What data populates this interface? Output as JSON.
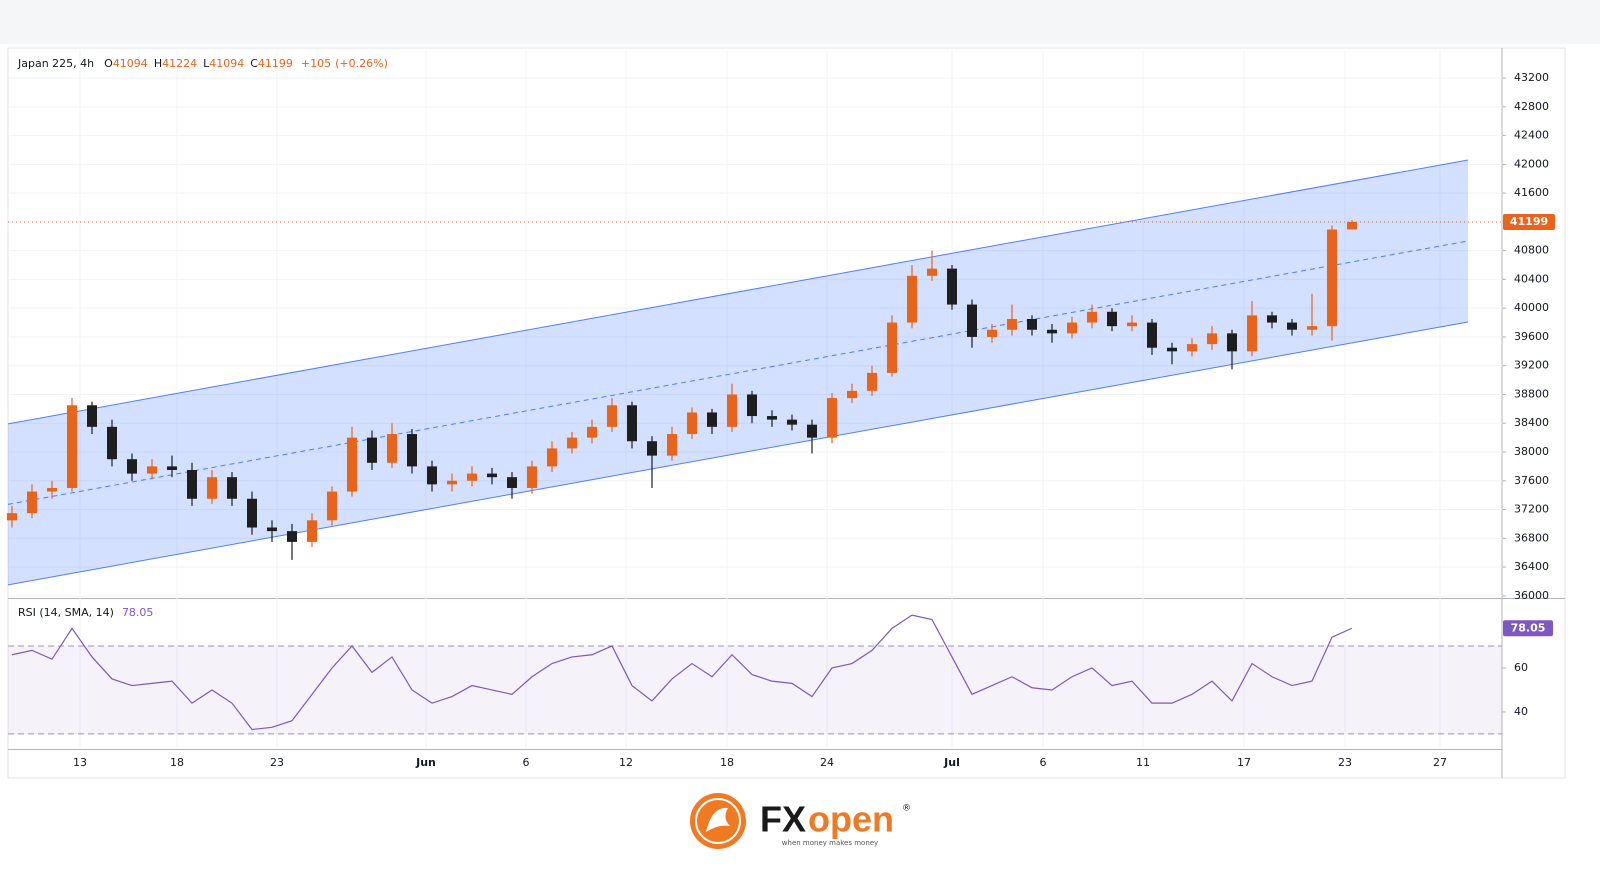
{
  "chart_data": [
    {
      "type": "candlestick",
      "title": "Japan 225, 4h",
      "ohlc_labels": [
        "O",
        "H",
        "L",
        "C"
      ],
      "change": {
        "value": 105,
        "label": "+105"
      },
      "change_pct": {
        "value": 0.26,
        "label": "(+0.26%)"
      },
      "x": [
        0,
        1,
        2,
        3,
        4,
        5,
        6,
        7,
        8,
        9,
        10,
        11,
        12,
        13,
        14,
        15,
        16,
        17,
        18,
        19,
        20,
        21,
        22,
        23,
        24,
        25,
        26,
        27,
        28,
        29,
        30,
        31,
        32,
        33,
        34,
        35,
        36,
        37,
        38,
        39,
        40,
        41,
        42,
        43,
        44,
        45,
        46,
        47,
        48,
        49,
        50,
        51,
        52,
        53,
        54,
        55,
        56,
        57,
        58,
        59,
        60,
        61,
        62,
        63,
        64,
        65,
        66,
        67
      ],
      "open": [
        37050,
        37150,
        37450,
        37500,
        38650,
        38350,
        37900,
        37700,
        37800,
        37750,
        37350,
        37650,
        37350,
        36950,
        36900,
        36750,
        37050,
        37450,
        38200,
        37850,
        38250,
        37800,
        37550,
        37600,
        37700,
        37650,
        37500,
        37800,
        38050,
        38200,
        38350,
        38650,
        38150,
        37950,
        38250,
        38550,
        38350,
        38800,
        38500,
        38450,
        38380,
        38200,
        38750,
        38850,
        39100,
        39800,
        40450,
        40550,
        40050,
        39600,
        39700,
        39850,
        39700,
        39650,
        39800,
        39950,
        39750,
        39800,
        39450,
        39400,
        39500,
        39650,
        39400,
        39900,
        39800,
        39700,
        39750,
        41094
      ],
      "high": [
        37250,
        37550,
        37600,
        38750,
        38700,
        38450,
        37980,
        37900,
        37950,
        37850,
        37750,
        37720,
        37450,
        37050,
        37000,
        37150,
        37520,
        38350,
        38300,
        38400,
        38320,
        37880,
        37700,
        37800,
        37780,
        37720,
        37880,
        38150,
        38280,
        38450,
        38750,
        38700,
        38220,
        38350,
        38620,
        38600,
        38950,
        38850,
        38580,
        38520,
        38450,
        38820,
        38950,
        39200,
        39900,
        40600,
        40800,
        40600,
        40120,
        39780,
        40050,
        39900,
        39780,
        39880,
        40050,
        40000,
        39900,
        39850,
        39520,
        39580,
        39750,
        39700,
        40100,
        39950,
        39850,
        40200,
        41150,
        41224
      ],
      "low": [
        36950,
        37080,
        37350,
        37450,
        38250,
        37800,
        37600,
        37620,
        37650,
        37250,
        37280,
        37250,
        36850,
        36750,
        36500,
        36680,
        36980,
        37380,
        37750,
        37780,
        37700,
        37450,
        37450,
        37520,
        37550,
        37350,
        37420,
        37720,
        37980,
        38120,
        38280,
        38050,
        37500,
        37880,
        38180,
        38250,
        38280,
        38400,
        38350,
        38300,
        37980,
        38120,
        38680,
        38780,
        39050,
        39720,
        40380,
        39980,
        39450,
        39520,
        39620,
        39620,
        39520,
        39580,
        39720,
        39680,
        39680,
        39350,
        39220,
        39330,
        39420,
        39150,
        39330,
        39720,
        39620,
        39620,
        39550,
        41094
      ],
      "close": [
        37150,
        37450,
        37500,
        38650,
        38350,
        37900,
        37700,
        37800,
        37750,
        37350,
        37650,
        37350,
        36950,
        36900,
        36750,
        37050,
        37450,
        38200,
        37850,
        38250,
        37800,
        37550,
        37600,
        37700,
        37650,
        37500,
        37800,
        38050,
        38200,
        38350,
        38650,
        38150,
        37950,
        38250,
        38550,
        38350,
        38800,
        38500,
        38450,
        38380,
        38200,
        38750,
        38850,
        39100,
        39800,
        40450,
        40550,
        40050,
        39600,
        39700,
        39850,
        39700,
        39650,
        39800,
        39950,
        39750,
        39800,
        39450,
        39400,
        39500,
        39650,
        39400,
        39900,
        39800,
        39700,
        39750,
        41094,
        41199
      ],
      "up_color": "#e8641b",
      "down_color": "#1e1e1e",
      "xlim": [
        -0.2,
        74.5
      ],
      "xticks": [
        {
          "value": 3.4,
          "label": "13"
        },
        {
          "value": 8.25,
          "label": "18"
        },
        {
          "value": 13.25,
          "label": "23"
        },
        {
          "value": 20.7,
          "label": "Jun"
        },
        {
          "value": 25.7,
          "label": "6"
        },
        {
          "value": 30.7,
          "label": "12"
        },
        {
          "value": 35.75,
          "label": "18"
        },
        {
          "value": 40.75,
          "label": "24"
        },
        {
          "value": 47,
          "label": "Jul"
        },
        {
          "value": 51.55,
          "label": "6"
        },
        {
          "value": 56.55,
          "label": "11"
        },
        {
          "value": 61.6,
          "label": "17"
        },
        {
          "value": 66.65,
          "label": "23"
        },
        {
          "value": 71.4,
          "label": "27"
        }
      ],
      "ylim": [
        35970,
        43590
      ],
      "yticks": [
        36000,
        36400,
        36800,
        37200,
        37600,
        38000,
        38400,
        38800,
        39200,
        39600,
        40000,
        40400,
        40800,
        41200,
        41600,
        42000,
        42400,
        42800,
        43200
      ],
      "grid": true,
      "channel": {
        "x": [
          -0.2,
          72.8
        ],
        "upper": [
          38391,
          42060
        ],
        "middle": [
          37272,
          40934
        ],
        "lower": [
          36153,
          39808
        ],
        "color": "#2962ff"
      }
    },
    {
      "type": "line",
      "title": "RSI (14, SMA, 14)",
      "values": [
        66,
        68,
        64,
        78,
        65,
        55,
        52,
        53,
        54,
        44,
        50,
        44,
        32,
        33,
        36,
        48,
        60,
        70,
        58,
        65,
        50,
        44,
        47,
        52,
        50,
        48,
        56,
        62,
        65,
        66,
        70,
        52,
        45,
        55,
        62,
        56,
        66,
        57,
        54,
        53,
        47,
        60,
        62,
        68,
        78,
        84,
        82,
        65,
        48,
        52,
        56,
        51,
        50,
        56,
        60,
        52,
        54,
        44,
        44,
        48,
        54,
        45,
        62,
        56,
        52,
        54,
        74,
        78.05
      ],
      "color": "#7e57c2",
      "ylim": [
        23.6,
        90.9
      ],
      "yticks": [
        40,
        60
      ],
      "bands": [
        30,
        70
      ]
    }
  ],
  "logo": {
    "brand_fx": "FX",
    "brand_open": "open",
    "mark": "®",
    "tagline": "when money makes money"
  }
}
